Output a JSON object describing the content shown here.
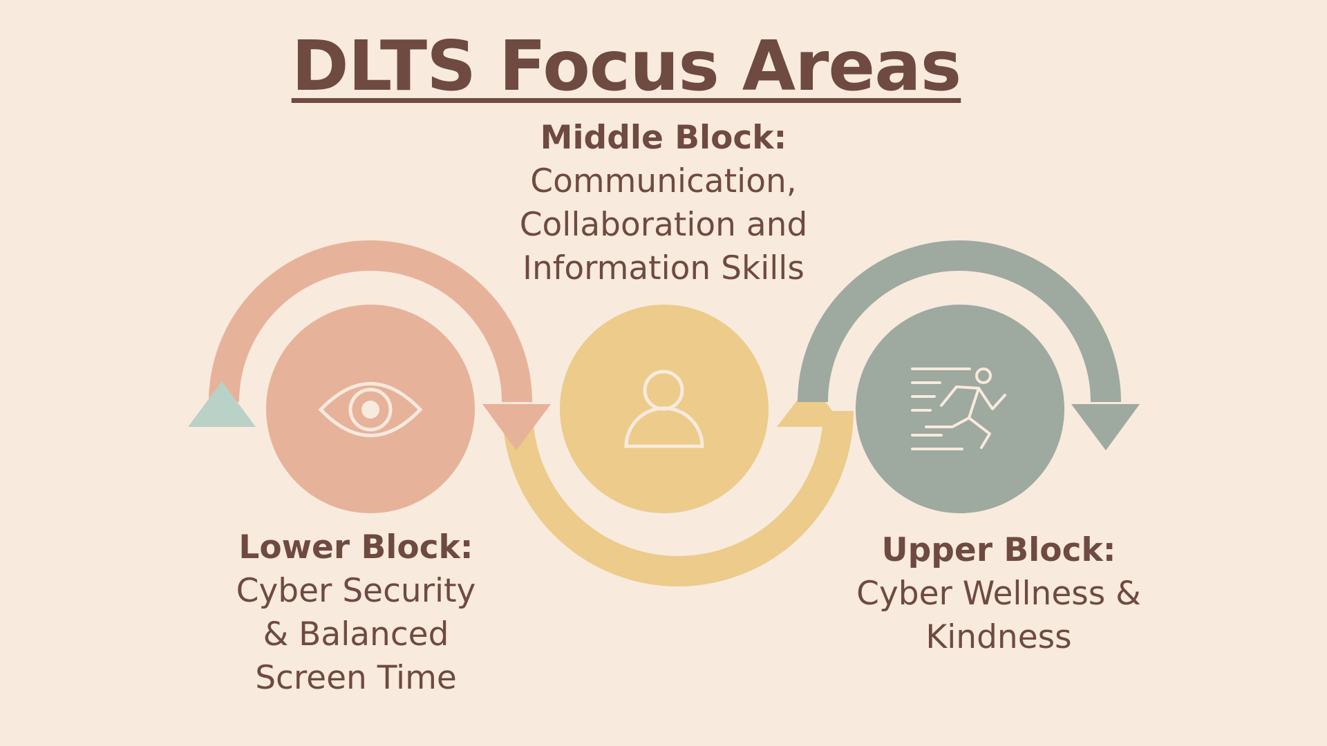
{
  "title": "DLTS Focus Areas",
  "blocks": {
    "middle": {
      "heading": "Middle Block:",
      "description": "Communication,\nCollaboration and\nInformation Skills"
    },
    "lower": {
      "heading": "Lower Block:",
      "description": "Cyber Security\n& Balanced\nScreen Time"
    },
    "upper": {
      "heading": "Upper Block:",
      "description": "Cyber Wellness &\nKindness"
    }
  },
  "icons": {
    "lower": "eye-icon",
    "middle": "person-icon",
    "upper": "running-person-icon"
  },
  "colors": {
    "background": "#F8EADD",
    "text": "#6E4A40",
    "salmon": "#E7B29A",
    "yellow": "#ECCB8B",
    "sage": "#9EA9A0",
    "mint": "#BAD1C7",
    "icon_stroke": "#F8EADD"
  }
}
